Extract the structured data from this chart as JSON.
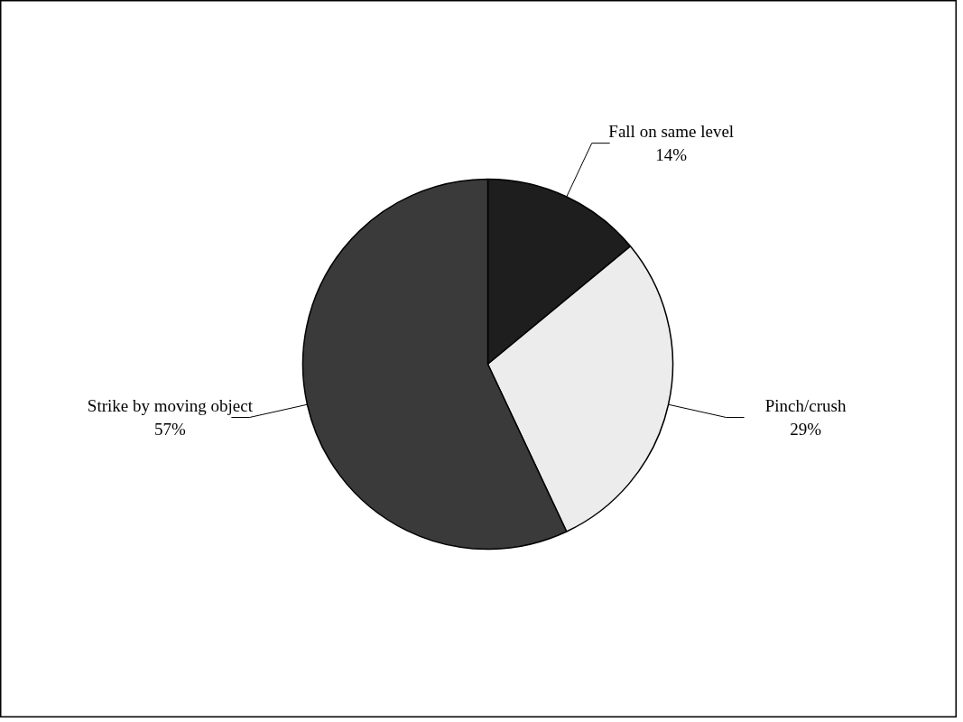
{
  "chart_data": {
    "type": "pie",
    "categories": [
      "Fall on same level",
      "Pinch/crush",
      "Strike by moving object"
    ],
    "values": [
      14,
      29,
      57
    ],
    "value_labels": [
      "14%",
      "29%",
      "57%"
    ],
    "colors": [
      "#1e1e1e",
      "#ececec",
      "#3a3a3a"
    ]
  }
}
